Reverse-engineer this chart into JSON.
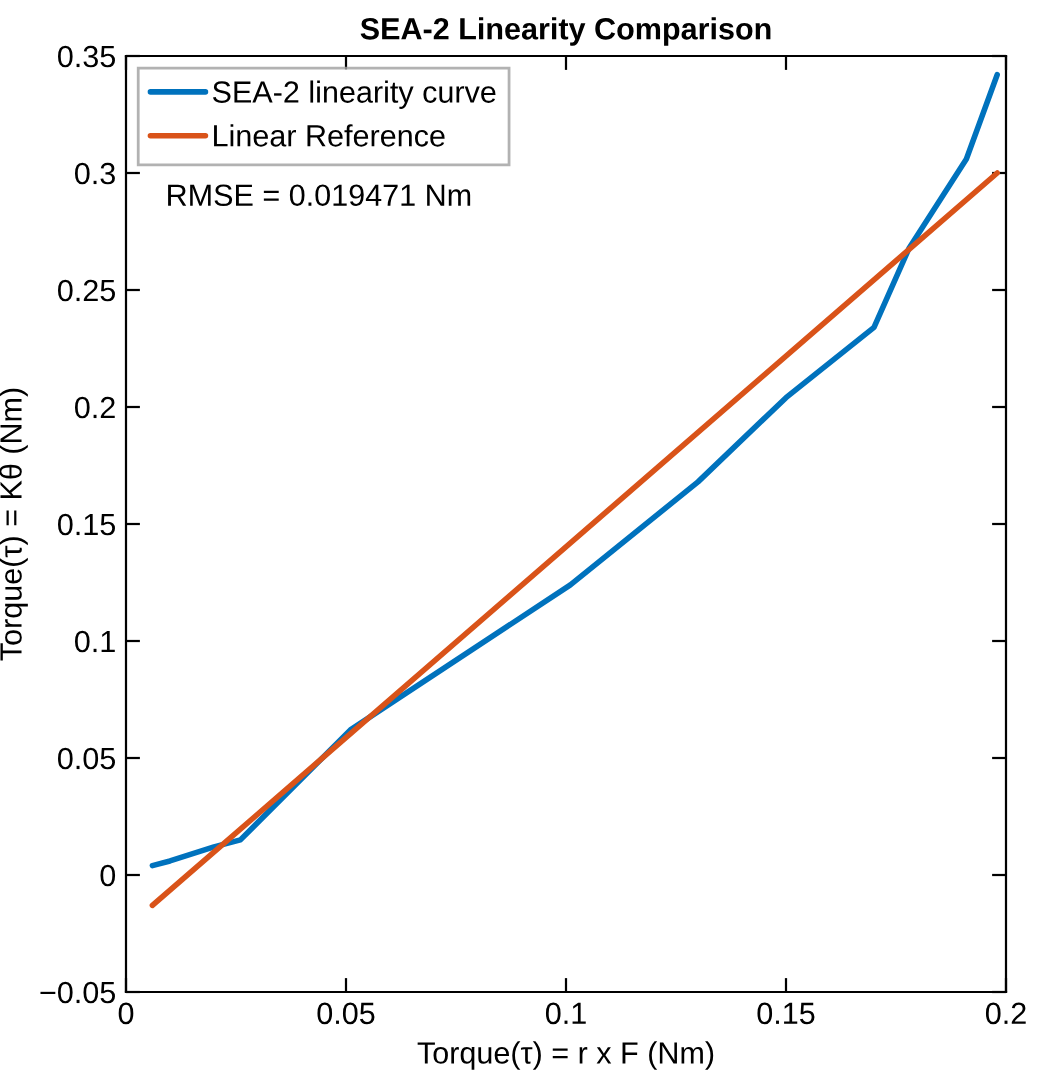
{
  "chart_data": {
    "type": "line",
    "title": "SEA-2 Linearity Comparison",
    "xlabel": "Torque(τ) = r x F (Nm)",
    "ylabel": "Torque(τ) = Kθ (Nm)",
    "annotations": [
      "RMSE = 0.019471 Nm"
    ],
    "series": [
      {
        "name": "SEA-2 linearity curve",
        "color": "#0072bd",
        "x": [
          0.006,
          0.01,
          0.02,
          0.026,
          0.051,
          0.101,
          0.13,
          0.15,
          0.17,
          0.178,
          0.191,
          0.198
        ],
        "values": [
          0.004,
          0.006,
          0.012,
          0.015,
          0.062,
          0.124,
          0.168,
          0.204,
          0.234,
          0.268,
          0.306,
          0.342
        ]
      },
      {
        "name": "Linear Reference",
        "color": "#d95319",
        "x": [
          0.006,
          0.198
        ],
        "values": [
          -0.013,
          0.3
        ]
      }
    ],
    "xlim": [
      0,
      0.2
    ],
    "xticks": [
      0,
      0.05,
      0.1,
      0.15,
      0.2
    ],
    "ylim": [
      -0.05,
      0.35
    ],
    "yticks": [
      {
        "value": -0.05,
        "label": "−0.05"
      },
      0,
      0.05,
      0.1,
      0.15,
      0.2,
      0.25,
      0.3,
      0.35
    ],
    "legend": "top left",
    "grid": false,
    "marker": "none",
    "line_style": "solid"
  }
}
